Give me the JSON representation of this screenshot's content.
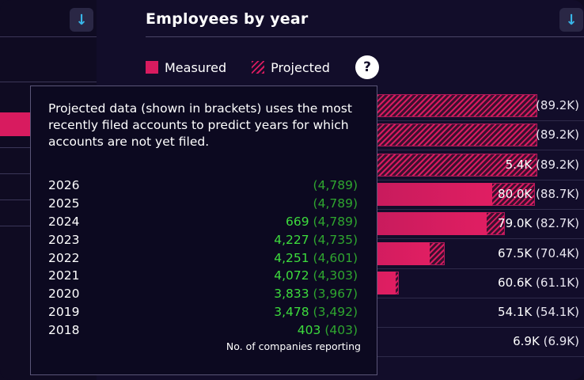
{
  "header": {
    "title": "Employees by year",
    "download_icon": "download-arrow-icon",
    "help_label": "?"
  },
  "legend": {
    "measured": "Measured",
    "projected": "Projected"
  },
  "colors": {
    "background": "#120d2a",
    "bar": "#d81b5f",
    "accent_icon": "#38b6e8",
    "tooltip_value": "#3ddc3d"
  },
  "chart_data": {
    "type": "bar",
    "orientation": "horizontal",
    "title": "Employees by year",
    "series": [
      {
        "name": "Measured",
        "values": [
          null,
          null,
          5400,
          80000,
          79000,
          67500,
          60600,
          54100,
          6900
        ]
      },
      {
        "name": "Projected",
        "values": [
          89200,
          89200,
          89200,
          88700,
          82700,
          70400,
          61100,
          54100,
          6900
        ]
      }
    ],
    "labels": [
      {
        "measured": "",
        "projected": "(89.2K)"
      },
      {
        "measured": "",
        "projected": "(89.2K)"
      },
      {
        "measured": "5.4K",
        "projected": "(89.2K)"
      },
      {
        "measured": "80.0K",
        "projected": "(88.7K)"
      },
      {
        "measured": "79.0K",
        "projected": "(82.7K)"
      },
      {
        "measured": "67.5K",
        "projected": "(70.4K)"
      },
      {
        "measured": "60.6K",
        "projected": "(61.1K)"
      },
      {
        "measured": "54.1K",
        "projected": "(54.1K)"
      },
      {
        "measured": "6.9K",
        "projected": "(6.9K)"
      }
    ],
    "xlim": [
      0,
      89200
    ]
  },
  "tooltip": {
    "text": "Projected data (shown in brackets) uses the most recently filed accounts to predict years for which accounts are not yet filed.",
    "rows": [
      {
        "year": "2026",
        "value": "",
        "projected": "(4,789)"
      },
      {
        "year": "2025",
        "value": "",
        "projected": "(4,789)"
      },
      {
        "year": "2024",
        "value": "669",
        "projected": "(4,789)"
      },
      {
        "year": "2023",
        "value": "4,227",
        "projected": "(4,735)"
      },
      {
        "year": "2022",
        "value": "4,251",
        "projected": "(4,601)"
      },
      {
        "year": "2021",
        "value": "4,072",
        "projected": "(4,303)"
      },
      {
        "year": "2020",
        "value": "3,833",
        "projected": "(3,967)"
      },
      {
        "year": "2019",
        "value": "3,478",
        "projected": "(3,492)"
      },
      {
        "year": "2018",
        "value": "403",
        "projected": "(403)"
      }
    ],
    "footer": "No. of companies reporting"
  }
}
